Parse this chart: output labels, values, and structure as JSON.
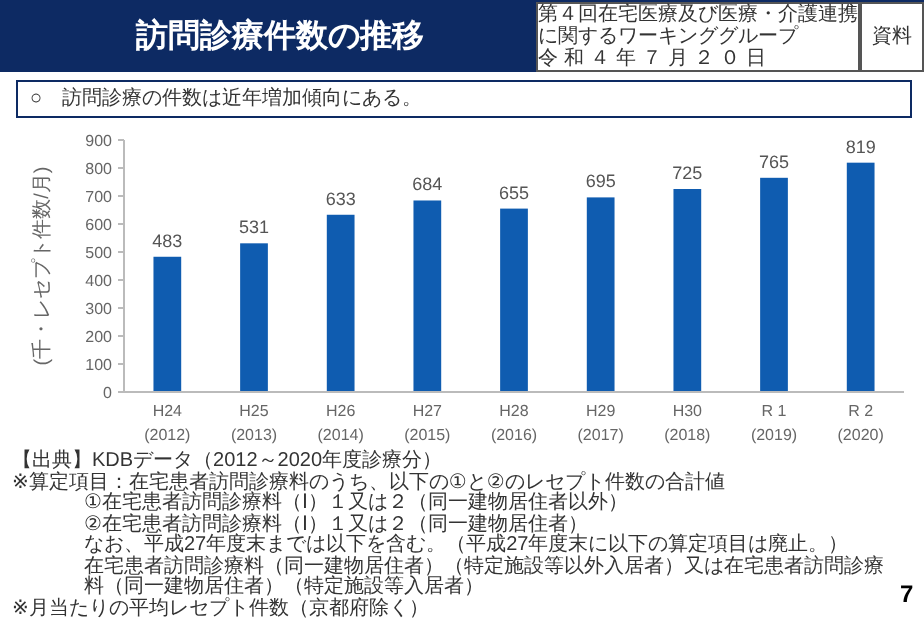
{
  "chart_data": {
    "type": "bar",
    "title": "訪問診療件数の推移",
    "subtitle": "○　訪問診療の件数は近年増加傾向にある。",
    "ylabel": "(千・レセプト件数/月)",
    "categories": [
      "H24\n(2012)",
      "H25\n(2013)",
      "H26\n(2014)",
      "H27\n(2015)",
      "H28\n(2016)",
      "H29\n(2017)",
      "H30\n(2018)",
      "R 1\n(2019)",
      "R 2\n(2020)"
    ],
    "values": [
      483,
      531,
      633,
      684,
      655,
      695,
      725,
      765,
      819
    ],
    "color": "#0f5cb0",
    "ylim": [
      0,
      900
    ],
    "yticks": [
      0,
      100,
      200,
      300,
      400,
      500,
      600,
      700,
      800,
      900
    ],
    "data_labels": true,
    "annotations": [
      "第４回在宅医療及び医療・介護連携に関するワーキンググループ",
      "令和４年７月２０日",
      "資料",
      "【出典】KDBデータ（2012～2020年度診療分）",
      "※算定項目：在宅患者訪問診療料のうち、以下の①と②のレセプト件数の合計値",
      "①在宅患者訪問診療料（Ⅰ）１又は２（同一建物居住者以外）",
      "②在宅患者訪問診療料（Ⅰ）１又は２（同一建物居住者）",
      "なお、平成27年度末までは以下を含む。（平成27年度末に以下の算定項目は廃止。）",
      "在宅患者訪問診療料（同一建物居住者）（特定施設等以外入居者）又は在宅患者訪問診療料（同一建物居住者）（特定施設等入居者）",
      "※月当たりの平均レセプト件数（京都府除く）",
      "7"
    ]
  }
}
